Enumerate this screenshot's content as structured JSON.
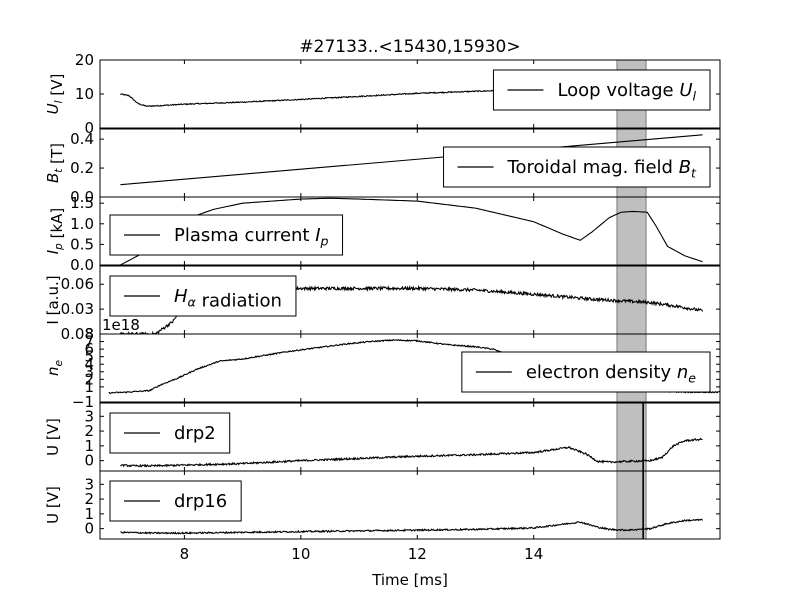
{
  "chart_data": {
    "type": "line",
    "title": "#27133..<15430,15930>",
    "xlabel": "Time [ms]",
    "xlim": [
      6.55,
      17.2
    ],
    "xticks": [
      8,
      10,
      12,
      14
    ],
    "highlight": {
      "x_start": 15.43,
      "x_end": 15.93,
      "color": "#bfbfbf"
    },
    "vline": {
      "x": 15.88
    },
    "panels": [
      {
        "id": "loop-voltage",
        "ylabel": "U_l [V]",
        "ylim": [
          0,
          20
        ],
        "yticks": [
          0,
          10,
          20
        ],
        "ytick_labels": [
          "0",
          "10",
          "20"
        ],
        "legend": "Loop voltage U_l",
        "legend_loc": "upper-right",
        "noise": 0.15,
        "series": [
          {
            "name": "Loop voltage U_l",
            "x": [
              6.9,
              7.05,
              7.2,
              7.35,
              7.6,
              8.0,
              9.0,
              10.0,
              11.0,
              12.0,
              13.0,
              14.0,
              14.5,
              15.0,
              15.5,
              16.0,
              16.5,
              16.9
            ],
            "y": [
              10,
              9.5,
              7.2,
              6.4,
              6.6,
              7.0,
              7.6,
              8.4,
              9.3,
              10.2,
              10.8,
              11.3,
              11.5,
              11.7,
              11.8,
              11.9,
              12.0,
              12.1
            ]
          }
        ]
      },
      {
        "id": "toroidal-field",
        "ylabel": "B_t [T]",
        "ylim": [
          0,
          0.47
        ],
        "yticks": [
          0,
          0.2,
          0.4
        ],
        "ytick_labels": [
          "0.0",
          "0.2",
          "0.4"
        ],
        "legend": "Toroidal mag. field B_t",
        "legend_loc": "lower-right",
        "noise": 0,
        "series": [
          {
            "name": "Toroidal mag. field B_t",
            "x": [
              6.9,
              16.9
            ],
            "y": [
              0.085,
              0.43
            ]
          }
        ]
      },
      {
        "id": "plasma-current",
        "ylabel": "I_p [kA]",
        "ylim": [
          0,
          1.65
        ],
        "yticks": [
          0,
          0.5,
          1.0,
          1.5
        ],
        "ytick_labels": [
          "0.0",
          "0.5",
          "1.0",
          "1.5"
        ],
        "legend": "Plasma current I_p",
        "legend_loc": "lower-left",
        "noise": 0,
        "series": [
          {
            "name": "Plasma current I_p",
            "x": [
              6.9,
              7.3,
              7.7,
              8.0,
              8.5,
              9.0,
              10.0,
              10.5,
              11.0,
              12.0,
              13.0,
              14.0,
              14.5,
              14.8,
              15.0,
              15.3,
              15.5,
              15.7,
              15.95,
              16.1,
              16.3,
              16.6,
              16.9
            ],
            "y": [
              0,
              0.3,
              0.75,
              1.1,
              1.35,
              1.5,
              1.6,
              1.62,
              1.6,
              1.55,
              1.38,
              1.05,
              0.75,
              0.6,
              0.8,
              1.15,
              1.28,
              1.3,
              1.28,
              0.95,
              0.45,
              0.22,
              0.08
            ]
          }
        ]
      },
      {
        "id": "halpha",
        "ylabel": "I [a.u.]",
        "ylim": [
          0,
          0.082
        ],
        "yticks": [
          0.03,
          0.06
        ],
        "ytick_labels": [
          "0.03",
          "0.06"
        ],
        "legend": "H_alpha radiation",
        "legend_loc": "upper-left",
        "noise": 0.0018,
        "series": [
          {
            "name": "H_alpha radiation",
            "x": [
              6.9,
              7.5,
              7.8,
              8.0,
              8.5,
              9.0,
              10.0,
              11.0,
              12.0,
              13.0,
              14.0,
              15.0,
              15.5,
              16.0,
              16.5,
              16.9
            ],
            "y": [
              0,
              0.0,
              0.015,
              0.035,
              0.05,
              0.054,
              0.055,
              0.055,
              0.055,
              0.053,
              0.048,
              0.042,
              0.04,
              0.038,
              0.033,
              0.028
            ]
          }
        ]
      },
      {
        "id": "density",
        "ylabel": "n_e",
        "ylim": [
          -1,
          8
        ],
        "yticks": [
          -1,
          1,
          2,
          3,
          4,
          5,
          6,
          7,
          8
        ],
        "ytick_labels": [
          "−1",
          "1",
          "2",
          "3",
          "4",
          "5",
          "6",
          "7",
          "8"
        ],
        "top_tick_label": "0.08",
        "multiplier": "1e18",
        "legend": "electron density n_e",
        "legend_loc": "lower-right",
        "noise": 0.08,
        "series": [
          {
            "name": "electron density n_e",
            "x": [
              6.7,
              7.0,
              7.4,
              7.6,
              7.9,
              8.2,
              8.6,
              9.0,
              9.4,
              9.8,
              10.2,
              10.8,
              11.2,
              11.6,
              12.0,
              12.5,
              13.0,
              13.3,
              13.6,
              13.8,
              14.0,
              14.2,
              14.5,
              14.8,
              15.2,
              15.5,
              15.9,
              16.0,
              16.1,
              16.3,
              16.6,
              17.0,
              17.2
            ],
            "y": [
              0.2,
              0.3,
              0.5,
              1.3,
              2.2,
              3.3,
              4.4,
              4.7,
              5.2,
              5.7,
              6.1,
              6.7,
              7.0,
              7.2,
              7.1,
              6.6,
              6.3,
              6.0,
              5.1,
              3.9,
              2.9,
              2.1,
              1.6,
              1.8,
              3.0,
              3.2,
              3.1,
              1.5,
              0.7,
              0.4,
              0.3,
              0.3,
              0.3
            ]
          }
        ]
      },
      {
        "id": "drp2",
        "ylabel": "U [V]",
        "ylim": [
          -0.7,
          3.9
        ],
        "yticks": [
          0,
          1,
          2,
          3
        ],
        "ytick_labels": [
          "0",
          "1",
          "2",
          "3"
        ],
        "legend": "drp2",
        "legend_loc": "upper-left",
        "noise": 0.06,
        "series": [
          {
            "name": "drp2",
            "x": [
              6.9,
              7.1,
              7.5,
              8.0,
              9.0,
              10.0,
              11.0,
              12.0,
              13.0,
              14.0,
              14.6,
              14.9,
              15.1,
              15.3,
              15.6,
              16.0,
              16.2,
              16.4,
              16.6,
              16.9
            ],
            "y": [
              -0.3,
              -0.35,
              -0.35,
              -0.3,
              -0.2,
              0.0,
              0.15,
              0.3,
              0.4,
              0.55,
              0.9,
              0.45,
              -0.05,
              -0.1,
              -0.05,
              0.0,
              0.2,
              1.0,
              1.35,
              1.45
            ]
          }
        ]
      },
      {
        "id": "drp16",
        "ylabel": "U [V]",
        "ylim": [
          -0.7,
          3.9
        ],
        "yticks": [
          0,
          1,
          2,
          3
        ],
        "ytick_labels": [
          "0",
          "1",
          "2",
          "3"
        ],
        "legend": "drp16",
        "legend_loc": "upper-left",
        "noise": 0.05,
        "series": [
          {
            "name": "drp16",
            "x": [
              6.9,
              7.5,
              8.0,
              9.0,
              10.0,
              11.0,
              12.0,
              13.0,
              14.0,
              14.8,
              15.1,
              15.3,
              15.6,
              16.0,
              16.3,
              16.6,
              16.9
            ],
            "y": [
              -0.25,
              -0.3,
              -0.3,
              -0.25,
              -0.2,
              -0.15,
              -0.1,
              -0.05,
              0.05,
              0.45,
              0.1,
              -0.05,
              -0.1,
              0.0,
              0.35,
              0.55,
              0.6
            ]
          }
        ]
      }
    ]
  }
}
